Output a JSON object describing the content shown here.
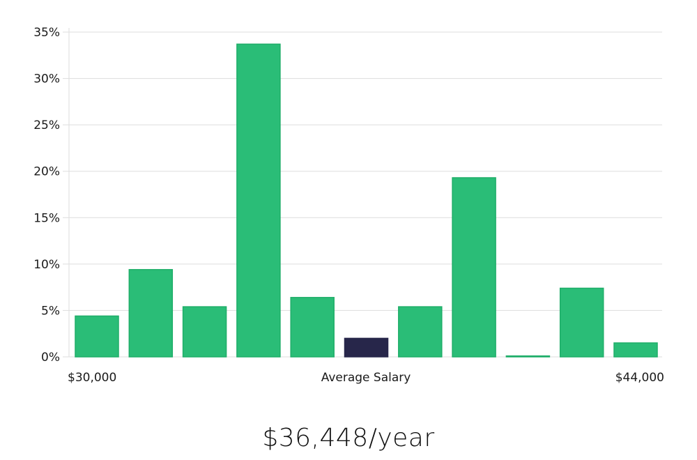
{
  "chart_data": {
    "type": "bar",
    "title": "",
    "xlabel": "Average Salary",
    "ylabel": "",
    "x_range_labels": [
      "$30,000",
      "$44,000"
    ],
    "ylim": [
      0,
      35
    ],
    "yticks": [
      0,
      5,
      10,
      15,
      20,
      25,
      30,
      35
    ],
    "ytick_labels": [
      "0%",
      "5%",
      "10%",
      "15%",
      "20%",
      "25%",
      "30%",
      "35%"
    ],
    "values": [
      4.4,
      9.4,
      5.4,
      33.7,
      6.4,
      2.0,
      5.4,
      19.3,
      0.1,
      7.4,
      1.5
    ],
    "highlight_index": 5,
    "colors": {
      "bar": "#2abd77",
      "bar_stroke": "#1fae69",
      "highlight": "#27264a",
      "grid": "#dddddd"
    }
  },
  "summary": {
    "salary": "$36,448/year"
  }
}
